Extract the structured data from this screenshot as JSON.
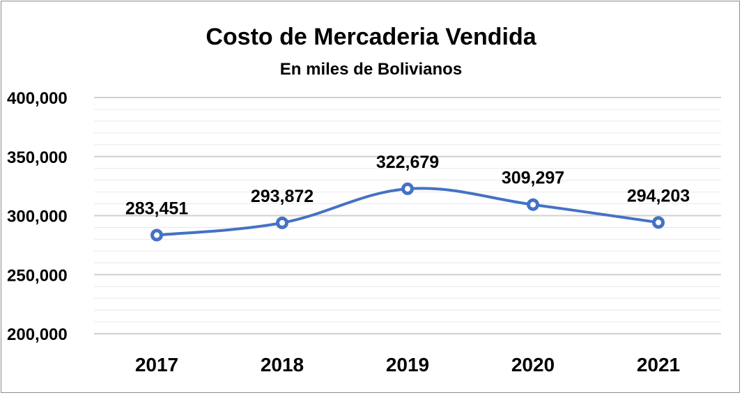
{
  "chart_data": {
    "type": "line",
    "title": "Costo de Mercaderia  Vendida",
    "subtitle": "En miles de Bolivianos",
    "categories": [
      "2017",
      "2018",
      "2019",
      "2020",
      "2021"
    ],
    "values": [
      283451,
      293872,
      322679,
      309297,
      294203
    ],
    "data_labels": [
      "283,451",
      "293,872",
      "322,679",
      "309,297",
      "294,203"
    ],
    "y_ticks": [
      200000,
      250000,
      300000,
      350000,
      400000
    ],
    "y_tick_labels": [
      "200,000",
      "250,000",
      "300,000",
      "350,000",
      "400,000"
    ],
    "ylim": [
      200000,
      400000
    ],
    "grid": true,
    "line_color": "#4472c4",
    "smooth": true,
    "legend": "none"
  }
}
